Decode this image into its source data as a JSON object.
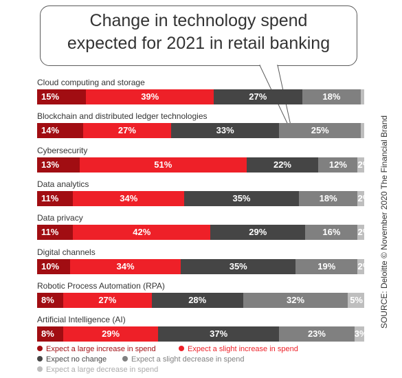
{
  "title_lines": [
    "Change in technology spend",
    "expected for 2021 in retail banking"
  ],
  "source": "SOURCE: Deloitte © November 2020 The Financial Brand",
  "colors": {
    "large_increase": "#a10d12",
    "slight_increase": "#ee2028",
    "no_change": "#454545",
    "slight_decrease": "#808080",
    "large_decrease": "#bebebe"
  },
  "legend": [
    {
      "label": "Expect a large increase in spend",
      "color": "#a10d12"
    },
    {
      "label": "Expect a slight increase in spend",
      "color": "#ee2028"
    },
    {
      "label": "Expect no change",
      "color": "#454545"
    },
    {
      "label": "Expect a slight decrease in spend",
      "color": "#808080"
    },
    {
      "label": "Expect a large decrease in spend",
      "color": "#bebebe"
    }
  ],
  "chart_data": {
    "type": "bar",
    "orientation": "horizontal",
    "stacked": "100%",
    "title": "Change in technology spend expected for 2021 in retail banking",
    "legend_position": "bottom",
    "grid": false,
    "categories": [
      "Cloud computing and storage",
      "Blockchain and distributed ledger technologies",
      "Cybersecurity",
      "Data analytics",
      "Data privacy",
      "Digital channels",
      "Robotic Process Automation (RPA)",
      "Artificial Intelligence (AI)"
    ],
    "series": [
      {
        "name": "Expect a large increase in spend",
        "values": [
          15,
          14,
          13,
          11,
          11,
          10,
          8,
          8
        ]
      },
      {
        "name": "Expect a slight increase in spend",
        "values": [
          39,
          27,
          51,
          34,
          42,
          34,
          27,
          29
        ]
      },
      {
        "name": "Expect no change",
        "values": [
          27,
          33,
          22,
          35,
          29,
          35,
          28,
          37
        ]
      },
      {
        "name": "Expect a slight decrease in spend",
        "values": [
          18,
          25,
          12,
          18,
          16,
          19,
          32,
          23
        ]
      },
      {
        "name": "Expect a large decrease in spend",
        "values": [
          1,
          1,
          2,
          2,
          2,
          2,
          5,
          3
        ]
      }
    ],
    "data_labels": [
      [
        "15%",
        "39%",
        "27%",
        "18%",
        ""
      ],
      [
        "14%",
        "27%",
        "33%",
        "25%",
        ""
      ],
      [
        "13%",
        "51%",
        "22%",
        "12%",
        "2%"
      ],
      [
        "11%",
        "34%",
        "35%",
        "18%",
        "2%"
      ],
      [
        "11%",
        "42%",
        "29%",
        "16%",
        "2%"
      ],
      [
        "10%",
        "34%",
        "35%",
        "19%",
        "2%"
      ],
      [
        "8%",
        "27%",
        "28%",
        "32%",
        "5%"
      ],
      [
        "8%",
        "29%",
        "37%",
        "23%",
        "3%"
      ]
    ]
  }
}
